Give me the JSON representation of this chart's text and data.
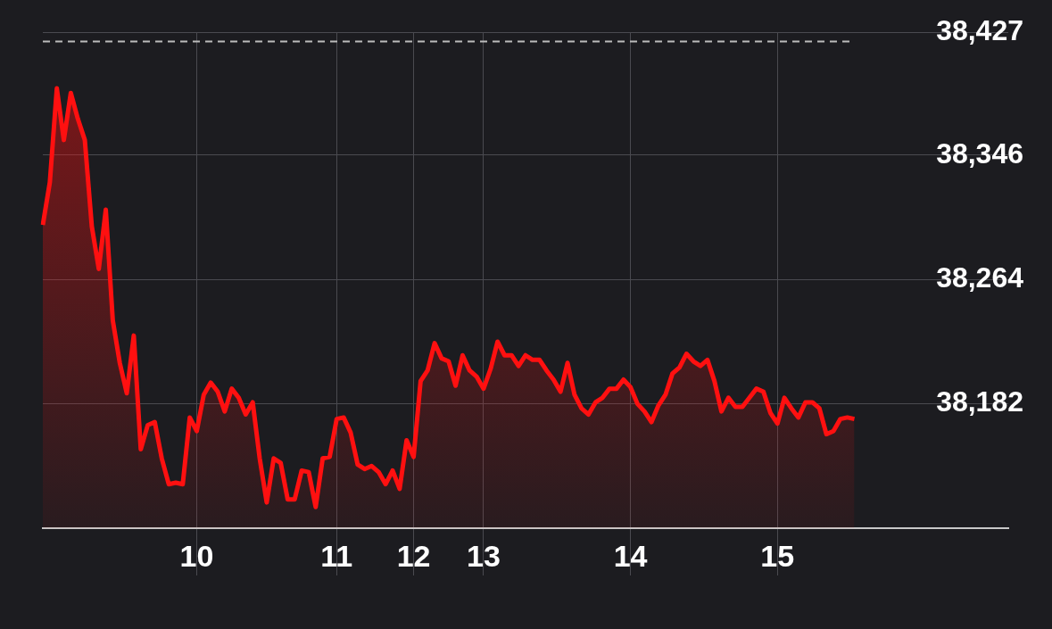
{
  "chart_data": {
    "type": "area",
    "categories": [
      null,
      null,
      null,
      null,
      null,
      null,
      null,
      null,
      null,
      null,
      null,
      null,
      null,
      null,
      null,
      null,
      null,
      null,
      null,
      null,
      null,
      null,
      "10",
      null,
      null,
      null,
      null,
      null,
      null,
      null,
      null,
      null,
      null,
      null,
      null,
      null,
      null,
      null,
      null,
      null,
      null,
      null,
      "11",
      null,
      null,
      null,
      null,
      null,
      null,
      null,
      null,
      null,
      null,
      "12",
      null,
      null,
      null,
      null,
      null,
      null,
      null,
      null,
      null,
      "13",
      null,
      null,
      null,
      null,
      null,
      null,
      null,
      null,
      null,
      null,
      null,
      null,
      null,
      null,
      null,
      null,
      null,
      null,
      null,
      null,
      "14",
      null,
      null,
      null,
      null,
      null,
      null,
      null,
      null,
      null,
      null,
      null,
      null,
      null,
      null,
      null,
      null,
      null,
      null,
      null,
      null,
      "15",
      null,
      null,
      null,
      null,
      null,
      null,
      null,
      null,
      null,
      null,
      null,
      null,
      null,
      null,
      null,
      null,
      null,
      null,
      null,
      null,
      null,
      null,
      null,
      null,
      null,
      null,
      null,
      null,
      null,
      null,
      null,
      null,
      null
    ],
    "series": [
      {
        "color": "#ff1010",
        "values": [
          38300,
          38328,
          38390,
          38356,
          38387,
          38370,
          38356,
          38299,
          38271,
          38310,
          38237,
          38209,
          38189,
          38227,
          38152,
          38168,
          38170,
          38146,
          38129,
          38130,
          38129,
          38173,
          38164,
          38188,
          38196,
          38190,
          38177,
          38192,
          38186,
          38175,
          38183,
          38146,
          38117,
          38146,
          38143,
          38119,
          38119,
          38138,
          38137,
          38114,
          38146,
          38147,
          38172,
          38173,
          38163,
          38142,
          38139,
          38141,
          38137,
          38129,
          38138,
          38126,
          38158,
          38147,
          38197,
          38204,
          38222,
          38212,
          38210,
          38194,
          38214,
          38204,
          38200,
          38192,
          38205,
          38223,
          38214,
          38214,
          38207,
          38214,
          38211,
          38211,
          38204,
          38198,
          38190,
          38209,
          38188,
          38179,
          38175,
          38183,
          38186,
          38192,
          38192,
          38198,
          38193,
          38182,
          38177,
          38170,
          38181,
          38188,
          38202,
          38206,
          38215,
          38210,
          38207,
          38211,
          38197,
          38177,
          38186,
          38180,
          38180,
          38186,
          38192,
          38190,
          38176,
          38169,
          38186,
          38179,
          38173,
          38183,
          38183,
          38179,
          38162,
          38164,
          38172,
          38173,
          38172,
          null,
          null,
          null,
          null,
          null,
          null,
          null,
          null,
          null,
          null,
          null,
          null,
          null,
          null,
          null,
          null,
          null,
          null,
          null,
          null,
          null,
          null
        ]
      }
    ],
    "ylim": [
      38100,
      38427
    ],
    "yticks": [
      {
        "value": 38182,
        "label": "38,182"
      },
      {
        "value": 38264,
        "label": "38,264"
      },
      {
        "value": 38346,
        "label": "38,346"
      },
      {
        "value": 38427,
        "label": "38,427"
      }
    ],
    "ref_lines": [
      {
        "axis": "y",
        "value": 38421,
        "line_style": "dashed",
        "color": "#bbbbbb"
      }
    ],
    "grid": true,
    "legend": false,
    "marker": "none",
    "line_style": "solid"
  }
}
